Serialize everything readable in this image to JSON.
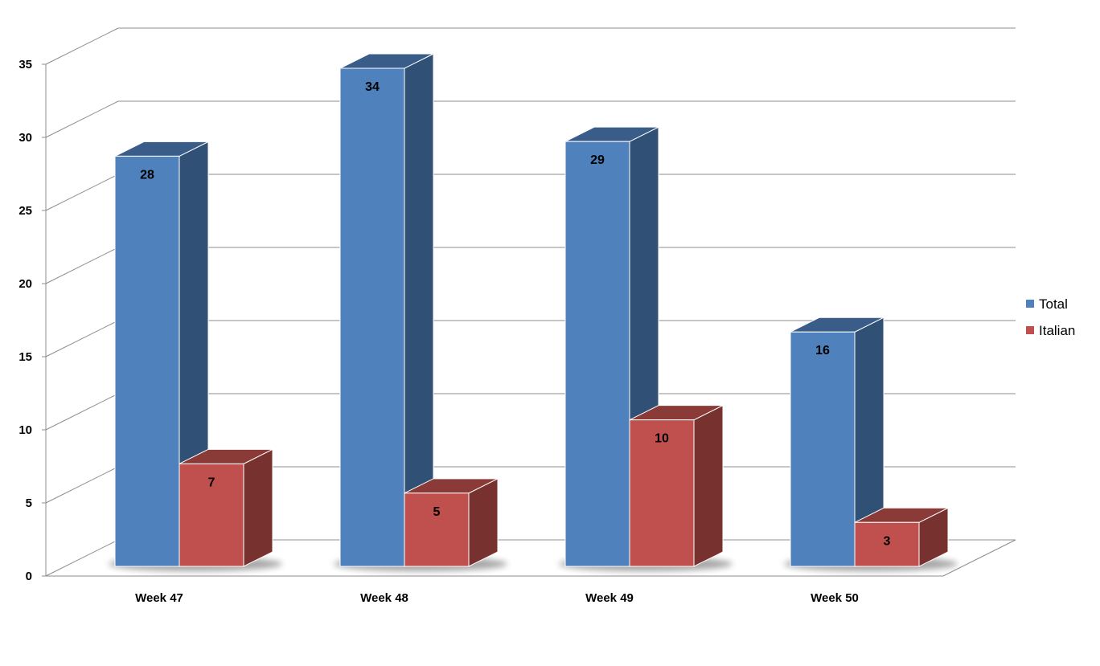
{
  "chart_data": {
    "type": "bar",
    "title": "",
    "xlabel": "",
    "ylabel": "",
    "categories": [
      "Week 47",
      "Week 48",
      "Week 49",
      "Week 50"
    ],
    "series": [
      {
        "name": "Total",
        "values": [
          28,
          34,
          29,
          16
        ],
        "color": "#4F81BD"
      },
      {
        "name": "Italian",
        "values": [
          7,
          5,
          10,
          3
        ],
        "color": "#C0504D"
      }
    ],
    "ylim": [
      0,
      35
    ],
    "yticks": [
      0,
      5,
      10,
      15,
      20,
      25,
      30,
      35
    ],
    "grid": true,
    "legend_position": "right",
    "style": "3d-clustered-column"
  }
}
